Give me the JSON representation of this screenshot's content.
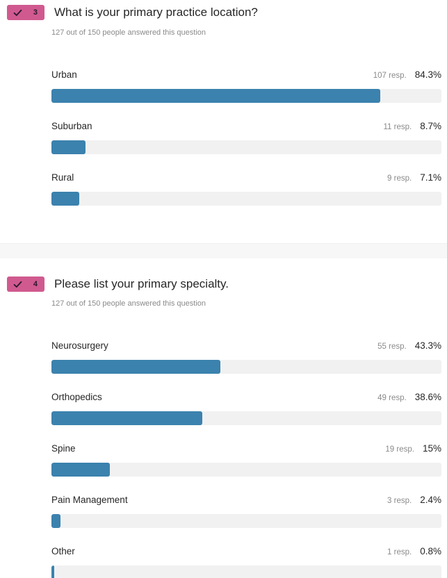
{
  "questions": [
    {
      "number": "3",
      "title": "What is your primary practice location?",
      "subtitle": "127 out of 150 people answered this question",
      "options": [
        {
          "label": "Urban",
          "responses": "107 resp.",
          "percent": "84.3%",
          "fill": 0.843
        },
        {
          "label": "Suburban",
          "responses": "11 resp.",
          "percent": "8.7%",
          "fill": 0.087
        },
        {
          "label": "Rural",
          "responses": "9 resp.",
          "percent": "7.1%",
          "fill": 0.071
        }
      ]
    },
    {
      "number": "4",
      "title": "Please list your primary specialty.",
      "subtitle": "127 out of 150 people answered this question",
      "options": [
        {
          "label": "Neurosurgery",
          "responses": "55 resp.",
          "percent": "43.3%",
          "fill": 0.433
        },
        {
          "label": "Orthopedics",
          "responses": "49 resp.",
          "percent": "38.6%",
          "fill": 0.386
        },
        {
          "label": "Spine",
          "responses": "19 resp.",
          "percent": "15%",
          "fill": 0.15
        },
        {
          "label": "Pain Management",
          "responses": "3 resp.",
          "percent": "2.4%",
          "fill": 0.024
        },
        {
          "label": "Other",
          "responses": "1 resp.",
          "percent": "0.8%",
          "fill": 0.008
        }
      ]
    }
  ],
  "colors": {
    "badge": "#d05a8f",
    "bar_fill": "#3b82ae",
    "bar_track": "#f1f1f1"
  },
  "icons": {
    "badge_icon": "check-icon"
  }
}
